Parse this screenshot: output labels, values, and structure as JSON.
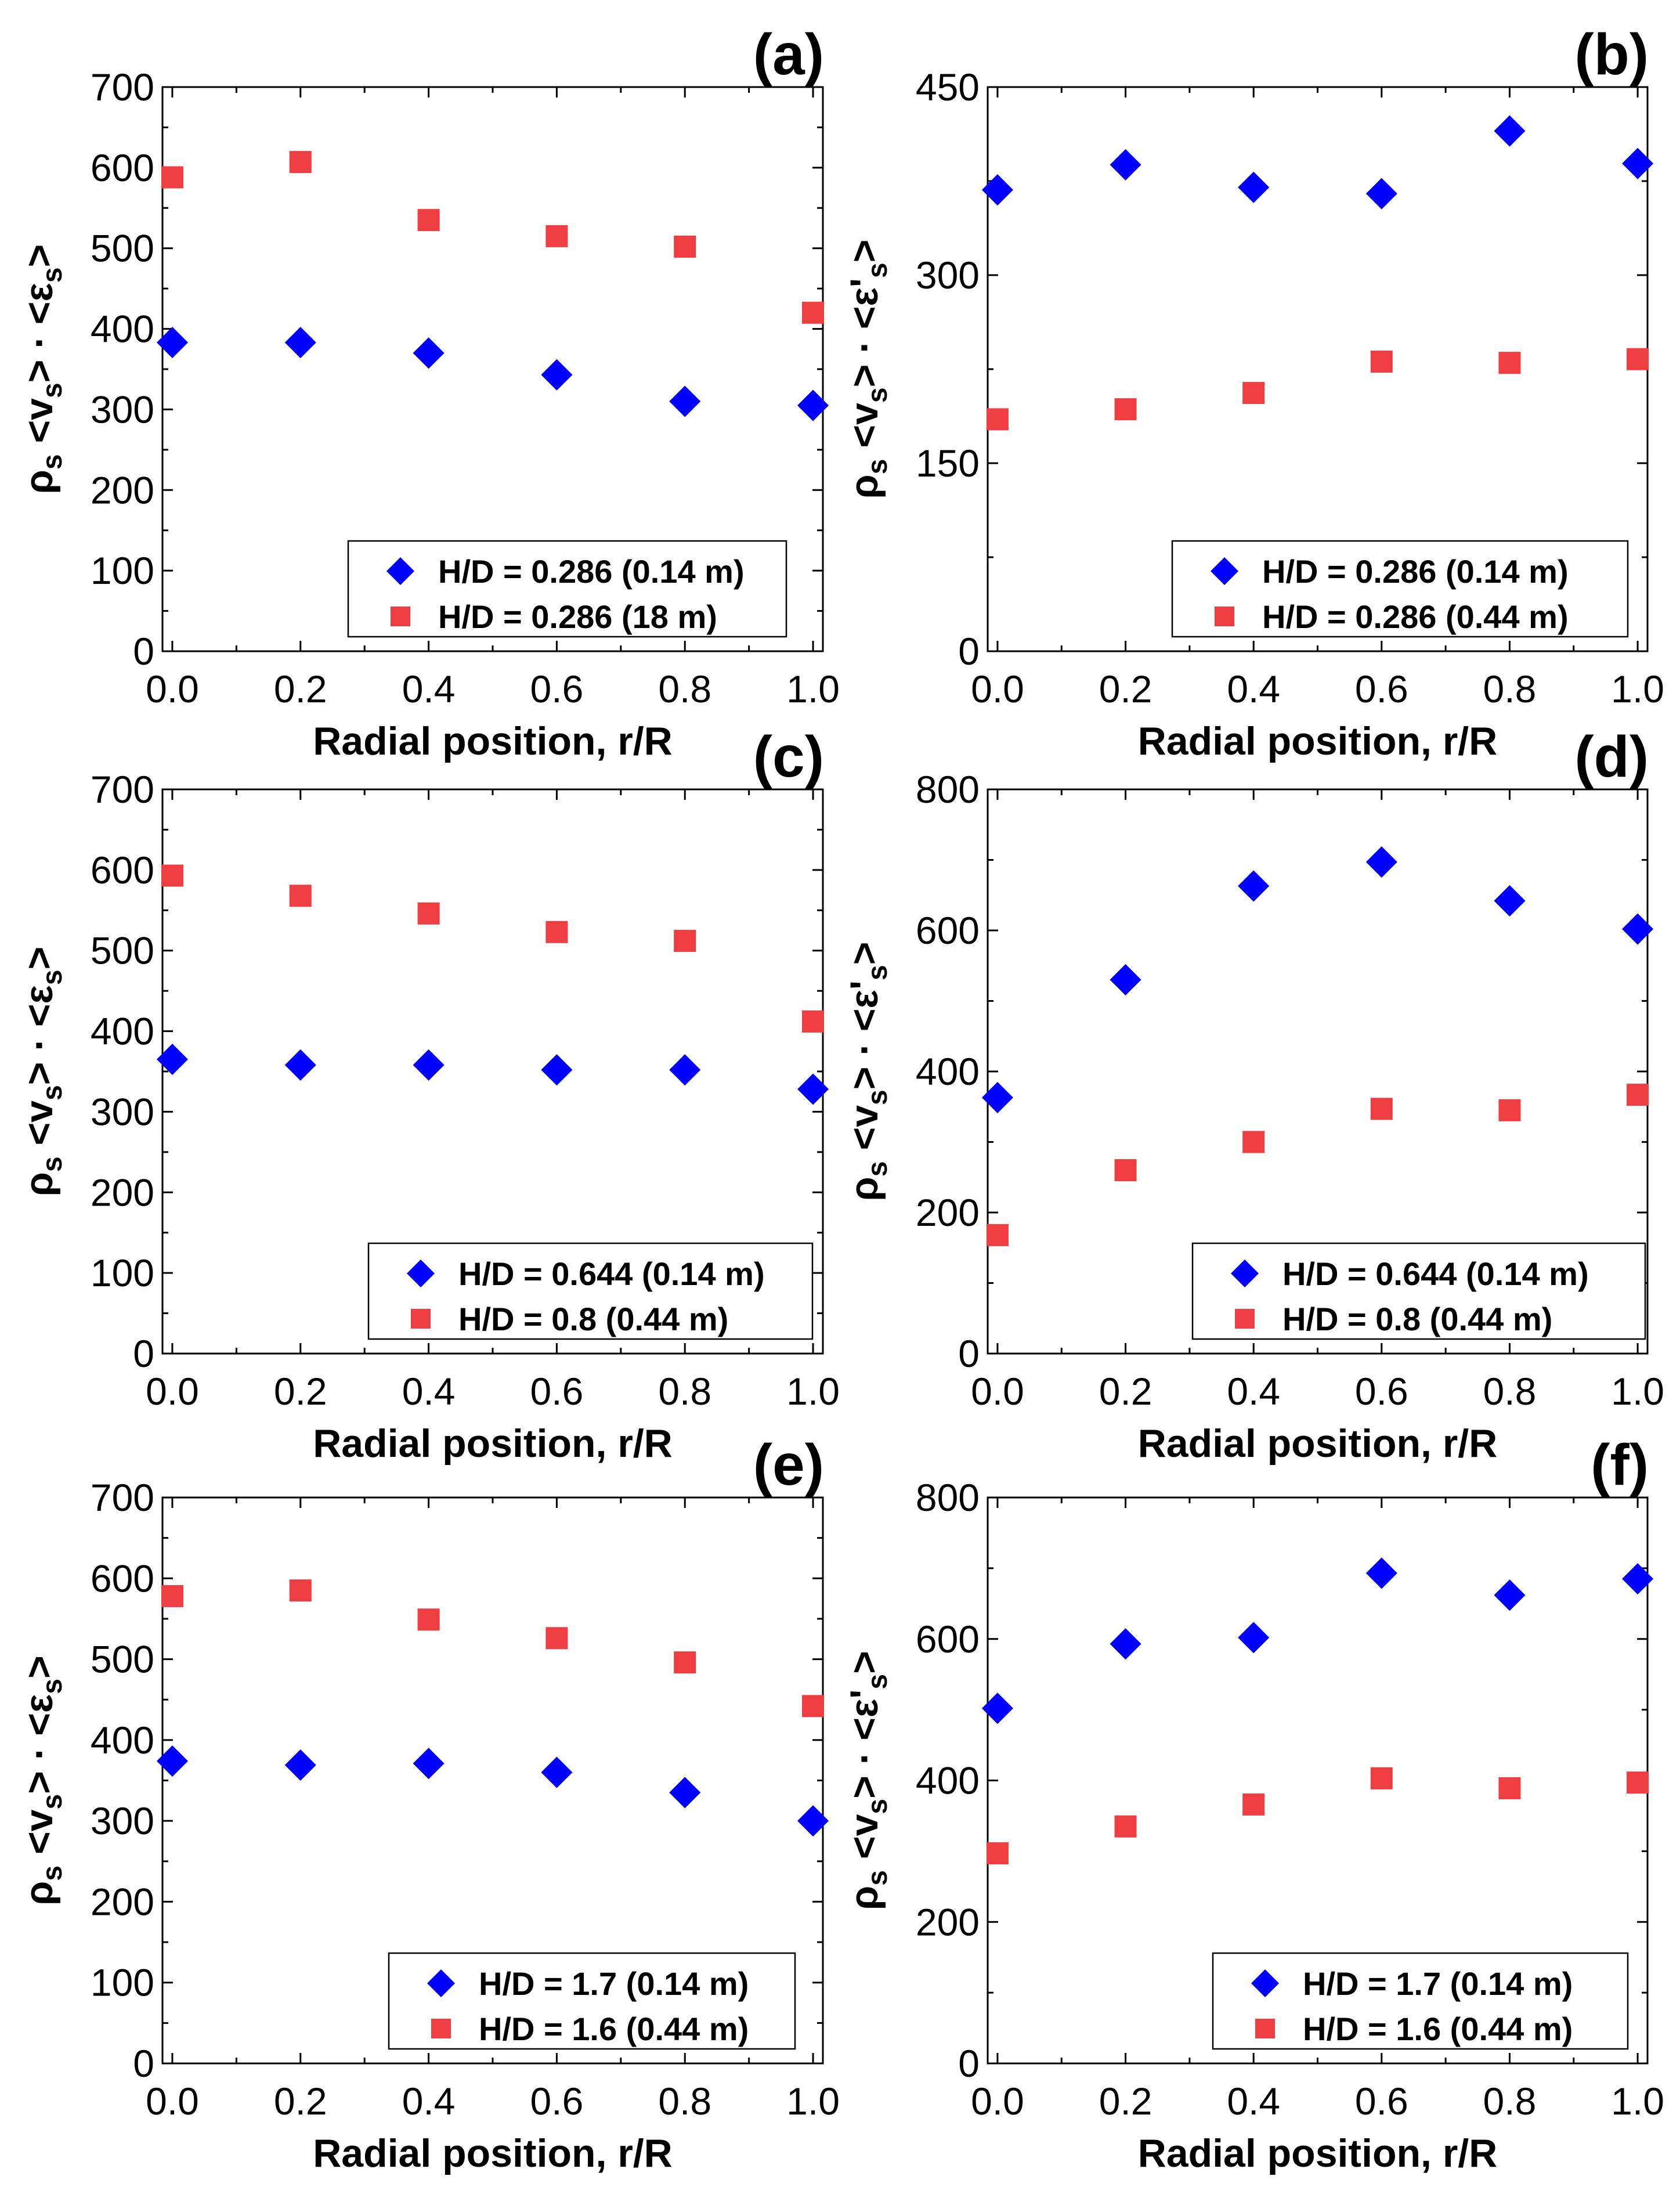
{
  "figure": {
    "colors": {
      "series_1": "#0000ff",
      "series_2": "#ef3e42"
    },
    "markers": {
      "series_1": "diamond",
      "series_2": "square"
    }
  },
  "chart_data": [
    {
      "panel": "(a)",
      "type": "scatter",
      "xlabel": "Radial position, r/R",
      "ylabel": "ρs <vs> · <εs>",
      "xlim": [
        0.0,
        1.0
      ],
      "ylim": [
        0,
        700
      ],
      "xticks": [
        "0.0",
        "0.2",
        "0.4",
        "0.6",
        "0.8",
        "1.0"
      ],
      "yticks": [
        "0",
        "100",
        "200",
        "300",
        "400",
        "500",
        "600",
        "700"
      ],
      "legend_position": "bottom-right",
      "x": [
        0.0,
        0.2,
        0.4,
        0.6,
        0.8,
        1.0
      ],
      "series": [
        {
          "name": "H/D = 0.286 (0.14 m)",
          "marker": "diamond",
          "color": "#0000ff",
          "values": [
            383,
            383,
            370,
            343,
            310,
            305
          ]
        },
        {
          "name": "H/D = 0.286 (18 m)",
          "marker": "square",
          "color": "#ef3e42",
          "values": [
            588,
            607,
            535,
            515,
            502,
            420
          ]
        }
      ]
    },
    {
      "panel": "(b)",
      "type": "scatter",
      "xlabel": "Radial position, r/R",
      "ylabel": "ρs <vs> · <ε's>",
      "xlim": [
        0.0,
        1.0
      ],
      "ylim": [
        0,
        450
      ],
      "xticks": [
        "0.0",
        "0.2",
        "0.4",
        "0.6",
        "0.8",
        "1.0"
      ],
      "yticks": [
        "0",
        "150",
        "300",
        "450"
      ],
      "legend_position": "bottom-right",
      "x": [
        0.0,
        0.2,
        0.4,
        0.6,
        0.8,
        1.0
      ],
      "series": [
        {
          "name": "H/D = 0.286 (0.14 m)",
          "marker": "diamond",
          "color": "#0000ff",
          "values": [
            368,
            388,
            370,
            365,
            415,
            389
          ]
        },
        {
          "name": "H/D = 0.286 (0.44 m)",
          "marker": "square",
          "color": "#ef3e42",
          "values": [
            185,
            193,
            206,
            231,
            230,
            233
          ]
        }
      ]
    },
    {
      "panel": "(c)",
      "type": "scatter",
      "xlabel": "Radial position, r/R",
      "ylabel": "ρs <vs> · <εs>",
      "xlim": [
        0.0,
        1.0
      ],
      "ylim": [
        0,
        700
      ],
      "xticks": [
        "0.0",
        "0.2",
        "0.4",
        "0.6",
        "0.8",
        "1.0"
      ],
      "yticks": [
        "0",
        "100",
        "200",
        "300",
        "400",
        "500",
        "600",
        "700"
      ],
      "legend_position": "bottom-right",
      "x": [
        0.0,
        0.2,
        0.4,
        0.6,
        0.8,
        1.0
      ],
      "series": [
        {
          "name": "H/D = 0.644 (0.14 m)",
          "marker": "diamond",
          "color": "#0000ff",
          "values": [
            365,
            358,
            358,
            352,
            352,
            328
          ]
        },
        {
          "name": "H/D = 0.8 (0.44 m)",
          "marker": "square",
          "color": "#ef3e42",
          "values": [
            593,
            568,
            546,
            523,
            512,
            412
          ]
        }
      ]
    },
    {
      "panel": "(d)",
      "type": "scatter",
      "xlabel": "Radial position, r/R",
      "ylabel": "ρs <vs> · <ε's>",
      "xlim": [
        0.0,
        1.0
      ],
      "ylim": [
        0,
        800
      ],
      "xticks": [
        "0.0",
        "0.2",
        "0.4",
        "0.6",
        "0.8",
        "1.0"
      ],
      "yticks": [
        "0",
        "200",
        "400",
        "600",
        "800"
      ],
      "legend_position": "bottom-right",
      "x": [
        0.0,
        0.2,
        0.4,
        0.6,
        0.8,
        1.0
      ],
      "series": [
        {
          "name": "H/D = 0.644 (0.14 m)",
          "marker": "diamond",
          "color": "#0000ff",
          "values": [
            363,
            530,
            663,
            697,
            642,
            602
          ]
        },
        {
          "name": "H/D = 0.8 (0.44 m)",
          "marker": "square",
          "color": "#ef3e42",
          "values": [
            168,
            260,
            300,
            347,
            345,
            367
          ]
        }
      ]
    },
    {
      "panel": "(e)",
      "type": "scatter",
      "xlabel": "Radial position, r/R",
      "ylabel": "ρs <vs> · <εs>",
      "xlim": [
        0.0,
        1.0
      ],
      "ylim": [
        0,
        700
      ],
      "xticks": [
        "0.0",
        "0.2",
        "0.4",
        "0.6",
        "0.8",
        "1.0"
      ],
      "yticks": [
        "0",
        "100",
        "200",
        "300",
        "400",
        "500",
        "600",
        "700"
      ],
      "legend_position": "bottom-right",
      "x": [
        0.0,
        0.2,
        0.4,
        0.6,
        0.8,
        1.0
      ],
      "series": [
        {
          "name": "H/D = 1.7 (0.14 m)",
          "marker": "diamond",
          "color": "#0000ff",
          "values": [
            374,
            369,
            371,
            360,
            335,
            300
          ]
        },
        {
          "name": "H/D = 1.6 (0.44 m)",
          "marker": "square",
          "color": "#ef3e42",
          "values": [
            578,
            585,
            549,
            526,
            496,
            442
          ]
        }
      ]
    },
    {
      "panel": "(f)",
      "type": "scatter",
      "xlabel": "Radial position, r/R",
      "ylabel": "ρs <vs> · <ε's>",
      "xlim": [
        0.0,
        1.0
      ],
      "ylim": [
        0,
        800
      ],
      "xticks": [
        "0.0",
        "0.2",
        "0.4",
        "0.6",
        "0.8",
        "1.0"
      ],
      "yticks": [
        "0",
        "200",
        "400",
        "600",
        "800"
      ],
      "legend_position": "bottom-right",
      "x": [
        0.0,
        0.2,
        0.4,
        0.6,
        0.8,
        1.0
      ],
      "series": [
        {
          "name": "H/D = 1.7 (0.14 m)",
          "marker": "diamond",
          "color": "#0000ff",
          "values": [
            502,
            593,
            602,
            693,
            662,
            685
          ]
        },
        {
          "name": "H/D = 1.6 (0.44 m)",
          "marker": "square",
          "color": "#ef3e42",
          "values": [
            297,
            335,
            366,
            403,
            389,
            397
          ]
        }
      ]
    }
  ]
}
